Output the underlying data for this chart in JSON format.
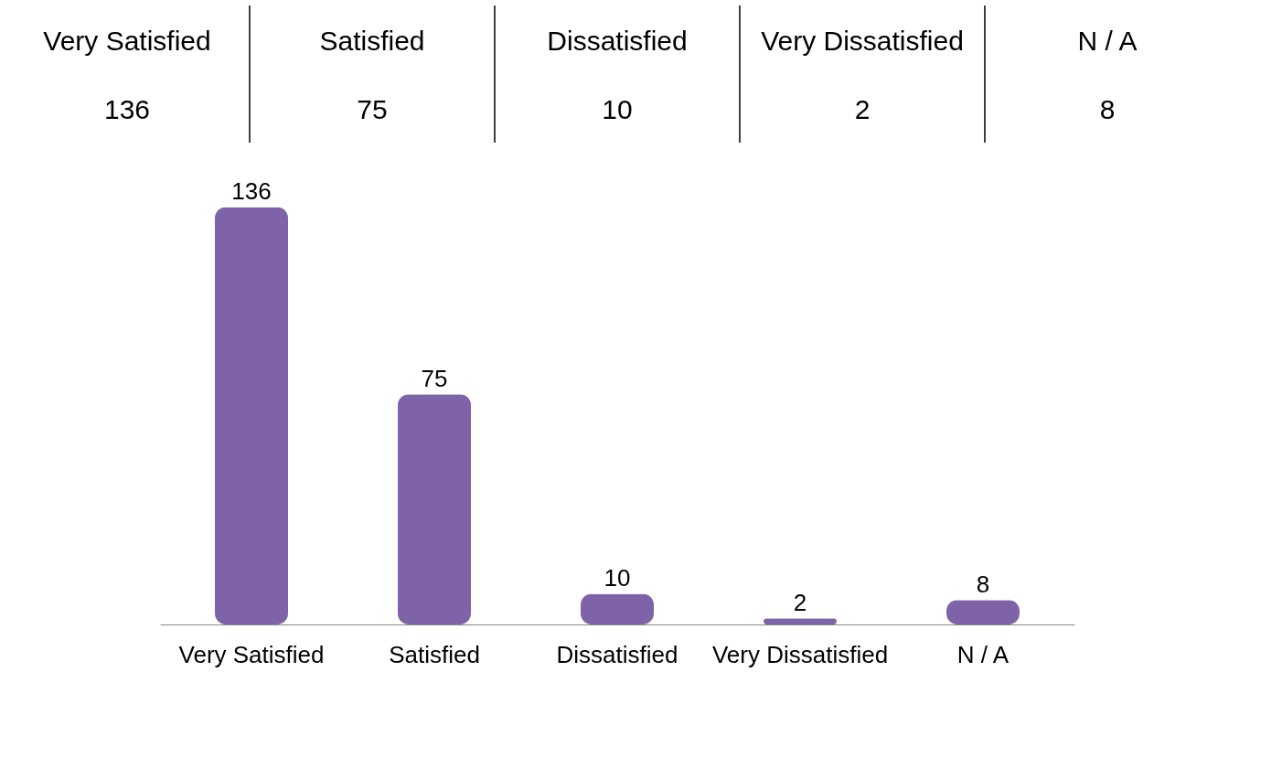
{
  "chart_data": {
    "type": "bar",
    "categories": [
      "Very Satisfied",
      "Satisfied",
      "Dissatisfied",
      "Very Dissatisfied",
      "N / A"
    ],
    "values": [
      136,
      75,
      10,
      2,
      8
    ],
    "color": "#7f63a8",
    "data_labels": true,
    "annotations": [
      "136",
      "75",
      "10",
      "2",
      "8"
    ],
    "grid": false
  }
}
